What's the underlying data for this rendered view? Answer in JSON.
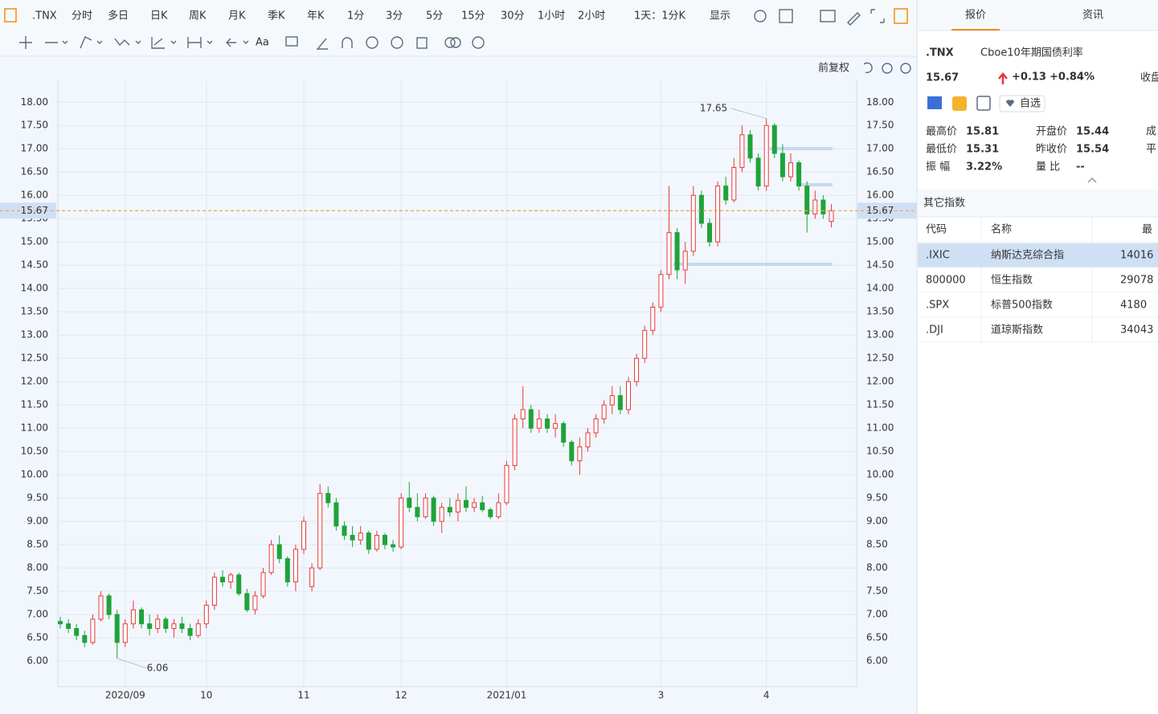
{
  "toolbar": {
    "symbol": ".TNX",
    "periods": [
      "分时",
      "多日",
      "日K",
      "周K",
      "月K",
      "季K",
      "年K",
      "1分",
      "3分",
      "5分",
      "15分",
      "30分",
      "1小时",
      "2小时",
      "1天：1分K",
      "显示"
    ],
    "font_tool": "Aa"
  },
  "chart_data": {
    "type": "candlestick",
    "adjust": "前复权",
    "categories": [
      null,
      null,
      null,
      null,
      null,
      null,
      null,
      null,
      "2020/09",
      null,
      null,
      null,
      null,
      null,
      null,
      null,
      null,
      null,
      "10",
      null,
      null,
      null,
      null,
      null,
      null,
      null,
      null,
      null,
      null,
      null,
      "11",
      null,
      null,
      null,
      null,
      null,
      null,
      null,
      null,
      null,
      null,
      null,
      "12",
      null,
      null,
      null,
      null,
      null,
      null,
      null,
      null,
      null,
      null,
      null,
      null,
      "2021/01",
      null,
      null,
      null,
      null,
      null,
      null,
      null,
      null,
      null,
      null,
      null,
      null,
      null,
      null,
      null,
      null,
      null,
      null,
      "3",
      null,
      null,
      null,
      null,
      null,
      null,
      null,
      null,
      null,
      null,
      null,
      null,
      "4",
      null,
      null,
      null,
      null,
      null,
      null,
      null,
      null
    ],
    "ohlc": [
      [
        6.85,
        6.95,
        6.7,
        6.8
      ],
      [
        6.8,
        6.9,
        6.6,
        6.7
      ],
      [
        6.7,
        6.8,
        6.45,
        6.55
      ],
      [
        6.55,
        6.65,
        6.3,
        6.4
      ],
      [
        6.4,
        7.0,
        6.35,
        6.9
      ],
      [
        6.9,
        7.5,
        6.85,
        7.4
      ],
      [
        7.4,
        7.45,
        6.9,
        7.0
      ],
      [
        7.0,
        7.1,
        6.06,
        6.4
      ],
      [
        6.4,
        6.9,
        6.3,
        6.8
      ],
      [
        6.8,
        7.3,
        6.7,
        7.1
      ],
      [
        7.1,
        7.15,
        6.7,
        6.8
      ],
      [
        6.8,
        7.0,
        6.55,
        6.7
      ],
      [
        6.7,
        7.0,
        6.6,
        6.9
      ],
      [
        6.9,
        6.95,
        6.6,
        6.7
      ],
      [
        6.7,
        6.9,
        6.5,
        6.8
      ],
      [
        6.8,
        6.95,
        6.6,
        6.7
      ],
      [
        6.7,
        6.8,
        6.45,
        6.55
      ],
      [
        6.55,
        6.9,
        6.5,
        6.8
      ],
      [
        6.8,
        7.3,
        6.7,
        7.2
      ],
      [
        7.2,
        7.9,
        7.1,
        7.8
      ],
      [
        7.8,
        7.95,
        7.6,
        7.7
      ],
      [
        7.7,
        7.9,
        7.55,
        7.85
      ],
      [
        7.85,
        7.9,
        7.4,
        7.45
      ],
      [
        7.45,
        7.55,
        7.05,
        7.1
      ],
      [
        7.1,
        7.5,
        7.0,
        7.4
      ],
      [
        7.4,
        8.0,
        7.35,
        7.9
      ],
      [
        7.9,
        8.6,
        7.85,
        8.5
      ],
      [
        8.5,
        8.7,
        8.1,
        8.2
      ],
      [
        8.2,
        8.25,
        7.6,
        7.7
      ],
      [
        7.7,
        8.5,
        7.5,
        8.4
      ],
      [
        8.4,
        9.1,
        8.3,
        9.0
      ],
      [
        7.6,
        8.1,
        7.5,
        8.0
      ],
      [
        8.0,
        9.8,
        7.95,
        9.6
      ],
      [
        9.6,
        9.75,
        9.3,
        9.4
      ],
      [
        9.4,
        9.5,
        8.8,
        8.9
      ],
      [
        8.9,
        9.0,
        8.6,
        8.7
      ],
      [
        8.7,
        8.9,
        8.45,
        8.6
      ],
      [
        8.6,
        8.9,
        8.5,
        8.75
      ],
      [
        8.75,
        8.8,
        8.3,
        8.4
      ],
      [
        8.4,
        8.8,
        8.35,
        8.7
      ],
      [
        8.7,
        8.75,
        8.4,
        8.5
      ],
      [
        8.5,
        8.6,
        8.35,
        8.45
      ],
      [
        8.45,
        9.6,
        8.4,
        9.5
      ],
      [
        9.5,
        9.85,
        9.2,
        9.3
      ],
      [
        9.3,
        9.6,
        9.0,
        9.1
      ],
      [
        9.1,
        9.6,
        9.05,
        9.5
      ],
      [
        9.5,
        9.55,
        8.9,
        9.0
      ],
      [
        9.0,
        9.4,
        8.75,
        9.3
      ],
      [
        9.3,
        9.5,
        9.1,
        9.2
      ],
      [
        9.2,
        9.6,
        9.0,
        9.45
      ],
      [
        9.45,
        9.75,
        9.2,
        9.3
      ],
      [
        9.3,
        9.5,
        9.2,
        9.4
      ],
      [
        9.4,
        9.55,
        9.2,
        9.25
      ],
      [
        9.25,
        9.3,
        9.05,
        9.1
      ],
      [
        9.1,
        9.6,
        9.05,
        9.4
      ],
      [
        9.4,
        10.3,
        9.35,
        10.2
      ],
      [
        10.2,
        11.3,
        10.1,
        11.2
      ],
      [
        11.2,
        11.9,
        11.0,
        11.4
      ],
      [
        11.4,
        11.5,
        10.9,
        11.0
      ],
      [
        11.0,
        11.4,
        10.9,
        11.2
      ],
      [
        11.2,
        11.3,
        10.9,
        11.0
      ],
      [
        11.0,
        11.3,
        10.8,
        11.1
      ],
      [
        11.1,
        11.15,
        10.6,
        10.7
      ],
      [
        10.7,
        10.75,
        10.2,
        10.3
      ],
      [
        10.3,
        10.8,
        10.0,
        10.6
      ],
      [
        10.6,
        11.0,
        10.5,
        10.9
      ],
      [
        10.9,
        11.3,
        10.8,
        11.2
      ],
      [
        11.2,
        11.6,
        11.1,
        11.5
      ],
      [
        11.5,
        11.9,
        11.3,
        11.7
      ],
      [
        11.7,
        11.9,
        11.3,
        11.4
      ],
      [
        11.4,
        12.1,
        11.3,
        12.0
      ],
      [
        12.0,
        12.6,
        11.9,
        12.5
      ],
      [
        12.5,
        13.2,
        12.4,
        13.1
      ],
      [
        13.1,
        13.7,
        13.0,
        13.6
      ],
      [
        13.6,
        14.4,
        13.5,
        14.3
      ],
      [
        14.3,
        16.2,
        14.2,
        15.2
      ],
      [
        15.2,
        15.3,
        14.2,
        14.4
      ],
      [
        14.4,
        15.0,
        14.1,
        14.8
      ],
      [
        14.8,
        16.2,
        14.7,
        16.0
      ],
      [
        16.0,
        16.1,
        15.3,
        15.4
      ],
      [
        15.4,
        15.5,
        14.9,
        15.0
      ],
      [
        15.0,
        16.3,
        14.9,
        16.2
      ],
      [
        16.2,
        16.4,
        15.8,
        15.9
      ],
      [
        15.9,
        16.8,
        15.85,
        16.6
      ],
      [
        16.6,
        17.5,
        16.5,
        17.3
      ],
      [
        17.3,
        17.4,
        16.7,
        16.8
      ],
      [
        16.8,
        16.9,
        16.1,
        16.2
      ],
      [
        16.2,
        17.65,
        16.1,
        17.5
      ],
      [
        17.5,
        17.55,
        16.8,
        16.9
      ],
      [
        16.9,
        17.1,
        16.3,
        16.4
      ],
      [
        16.4,
        16.9,
        16.3,
        16.7
      ],
      [
        16.7,
        16.75,
        16.1,
        16.2
      ],
      [
        16.2,
        16.3,
        15.2,
        15.6
      ],
      [
        15.6,
        16.1,
        15.5,
        15.9
      ],
      [
        15.9,
        16.0,
        15.5,
        15.6
      ],
      [
        15.44,
        15.81,
        15.31,
        15.67
      ]
    ],
    "up_color": "#e8393a",
    "down_color": "#1fa33a",
    "ylim": [
      5.45,
      18.47
    ],
    "yticks": [
      {
        "value": 6,
        "label": "6.00"
      },
      {
        "value": 6.5,
        "label": "6.50"
      },
      {
        "value": 7,
        "label": "7.00"
      },
      {
        "value": 7.5,
        "label": "7.50"
      },
      {
        "value": 8,
        "label": "8.00"
      },
      {
        "value": 8.5,
        "label": "8.50"
      },
      {
        "value": 9,
        "label": "9.00"
      },
      {
        "value": 9.5,
        "label": "9.50"
      },
      {
        "value": 10,
        "label": "10.00"
      },
      {
        "value": 10.5,
        "label": "10.50"
      },
      {
        "value": 11,
        "label": "11.00"
      },
      {
        "value": 11.5,
        "label": "11.50"
      },
      {
        "value": 12,
        "label": "12.00"
      },
      {
        "value": 12.5,
        "label": "12.50"
      },
      {
        "value": 13,
        "label": "13.00"
      },
      {
        "value": 13.5,
        "label": "13.50"
      },
      {
        "value": 14,
        "label": "14.00"
      },
      {
        "value": 14.5,
        "label": "14.50"
      },
      {
        "value": 15,
        "label": "15.00"
      },
      {
        "value": 15.5,
        "label": "15.50"
      },
      {
        "value": 16,
        "label": "16.00"
      },
      {
        "value": 16.5,
        "label": "16.50"
      },
      {
        "value": 17,
        "label": "17.00"
      },
      {
        "value": 17.5,
        "label": "17.50"
      },
      {
        "value": 18,
        "label": "18.00"
      }
    ],
    "grid": true,
    "last": 15.67,
    "high_label": 17.65,
    "low_label": 6.06
  },
  "panel": {
    "tabs": [
      "报价",
      "资讯"
    ],
    "symbol": ".TNX",
    "name": "Cboe10年期国债利率",
    "price": "15.67",
    "change": "+0.13",
    "change_pct": "+0.84%",
    "status": "收盘",
    "watch": "自选",
    "stats": [
      [
        "最高价",
        "15.81"
      ],
      [
        "最低价",
        "15.31"
      ],
      [
        "振 幅",
        "3.22%"
      ],
      [
        "开盘价",
        "15.44"
      ],
      [
        "昨收价",
        "15.54"
      ],
      [
        "量 比",
        "--"
      ]
    ],
    "stats_cut": [
      "成",
      "平"
    ],
    "other_title": "其它指数",
    "columns": [
      "代码",
      "名称",
      "最"
    ],
    "rows": [
      [
        ".IXIC",
        "纳斯达克综合指",
        "14016"
      ],
      [
        "800000",
        "恒生指数",
        "29078"
      ],
      [
        ".SPX",
        "标普500指数",
        "4180"
      ],
      [
        ".DJI",
        "道琼斯指数",
        "34043"
      ]
    ]
  }
}
